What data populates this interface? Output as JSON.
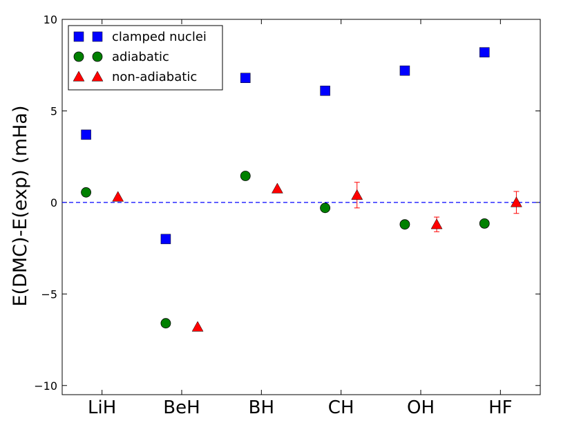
{
  "chart_data": {
    "type": "scatter",
    "xlabel": "",
    "ylabel": "E(DMC)-E(exp) (mHa)",
    "categories": [
      "LiH",
      "BeH",
      "BH",
      "CH",
      "OH",
      "HF"
    ],
    "ylim": [
      -10.5,
      10
    ],
    "yticks": [
      10,
      5,
      0,
      -5,
      -10
    ],
    "ytick_labels": [
      "10",
      "5",
      "0",
      "−5",
      "−10"
    ],
    "reference_line": {
      "y": 0,
      "style": "dashed",
      "color": "#0000ff"
    },
    "legend": {
      "placement": "top-left"
    },
    "series": [
      {
        "name": "clamped nuclei",
        "marker": "square",
        "color": "#0000ff",
        "offset": -0.2,
        "values": [
          3.7,
          -2.0,
          6.8,
          6.1,
          7.2,
          8.2
        ]
      },
      {
        "name": "adiabatic",
        "marker": "circle",
        "color": "#008000",
        "offset": -0.2,
        "values": [
          0.55,
          -6.6,
          1.45,
          -0.3,
          -1.2,
          -1.15
        ]
      },
      {
        "name": "non-adiabatic",
        "marker": "triangle",
        "color": "#ff0000",
        "offset": 0.2,
        "values": [
          0.3,
          -6.8,
          0.75,
          0.4,
          -1.2,
          0.0
        ],
        "errors": [
          0,
          0,
          0,
          0.7,
          0.4,
          0.6
        ]
      }
    ]
  }
}
